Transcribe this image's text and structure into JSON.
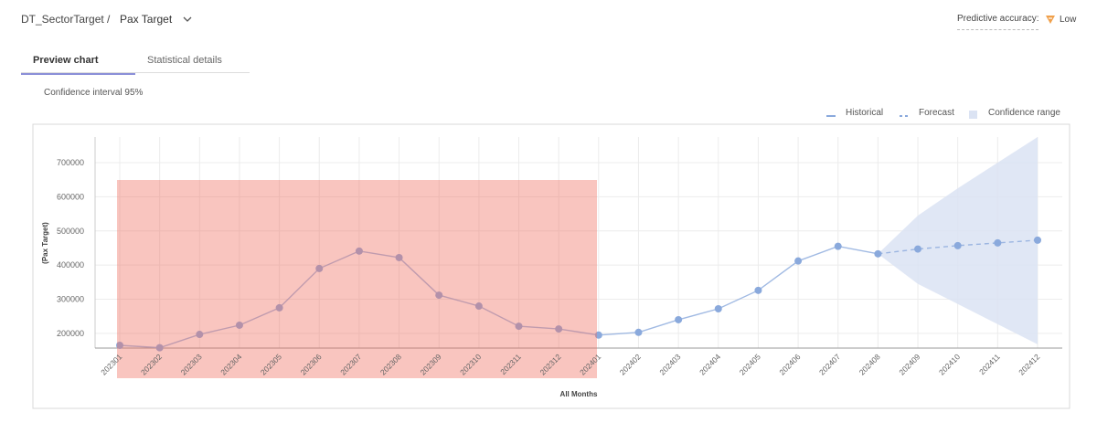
{
  "header": {
    "breadcrumb": "DT_SectorTarget /",
    "dataset": "Pax Target",
    "accuracy_label": "Predictive accuracy:",
    "accuracy_value": "Low"
  },
  "tabs": [
    "Preview chart",
    "Statistical details"
  ],
  "confidence_note": "Confidence interval 95%",
  "chart_data": {
    "type": "line",
    "x_label": "All Months",
    "y_label": "(Pax Target)",
    "categories": [
      "202301",
      "202302",
      "202303",
      "202304",
      "202305",
      "202306",
      "202307",
      "202308",
      "202309",
      "202310",
      "202311",
      "202312",
      "202401",
      "202402",
      "202403",
      "202404",
      "202405",
      "202406",
      "202407",
      "202408",
      "202409",
      "202410",
      "202411",
      "202412"
    ],
    "series": [
      {
        "name": "Historical",
        "color": "#8aa9dc",
        "dash": false,
        "values": [
          165000,
          158000,
          197000,
          224000,
          275000,
          390000,
          441000,
          422000,
          312000,
          280000,
          221000,
          213000,
          195000,
          203000,
          240000,
          272000,
          326000,
          412000,
          455000,
          433000,
          null,
          null,
          null,
          null
        ]
      },
      {
        "name": "Forecast",
        "color": "#8aa9dc",
        "dash": true,
        "values": [
          null,
          null,
          null,
          null,
          null,
          null,
          null,
          null,
          null,
          null,
          null,
          null,
          null,
          null,
          null,
          null,
          null,
          null,
          null,
          433000,
          447000,
          457000,
          465000,
          473000
        ]
      }
    ],
    "confidence": {
      "name": "Confidence range",
      "color": "#dbe3f3",
      "lower": [
        null,
        null,
        null,
        null,
        null,
        null,
        null,
        null,
        null,
        null,
        null,
        null,
        null,
        null,
        null,
        null,
        null,
        null,
        null,
        433000,
        345000,
        286000,
        227000,
        168000
      ],
      "upper": [
        null,
        null,
        null,
        null,
        null,
        null,
        null,
        null,
        null,
        null,
        null,
        null,
        null,
        null,
        null,
        null,
        null,
        null,
        null,
        433000,
        545000,
        625000,
        700000,
        775000
      ]
    },
    "ylim": [
      157000,
      775000
    ],
    "yticks": [
      200000,
      300000,
      400000,
      500000,
      600000,
      700000
    ],
    "grid": true
  }
}
